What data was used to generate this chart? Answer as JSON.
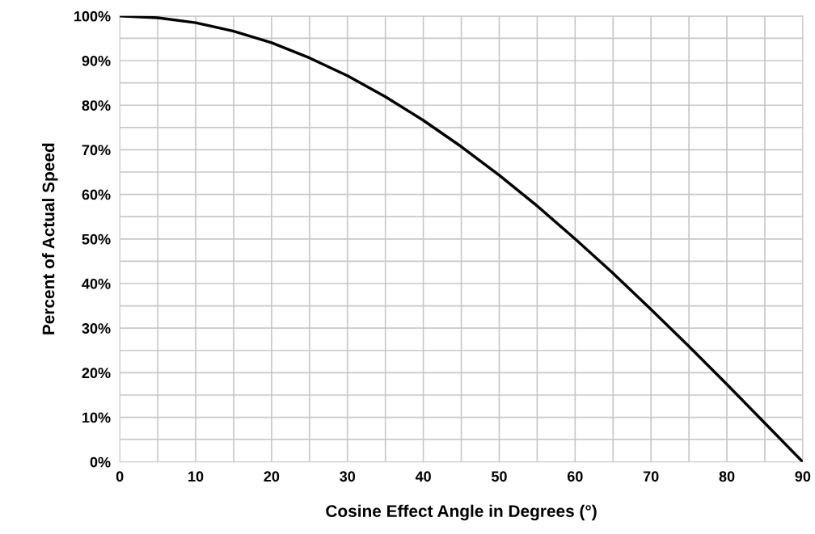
{
  "chart_data": {
    "type": "line",
    "xlabel": "Cosine Effect Angle in Degrees (°)",
    "ylabel": "Percent of Actual Speed",
    "x": [
      0,
      5,
      10,
      15,
      20,
      25,
      30,
      35,
      40,
      45,
      50,
      55,
      60,
      65,
      70,
      75,
      80,
      85,
      90
    ],
    "series": [
      {
        "color": "#000000",
        "values": [
          100,
          99.6,
          98.5,
          96.6,
          94,
          90.6,
          86.6,
          81.9,
          76.6,
          70.7,
          64.3,
          57.4,
          50,
          42.3,
          34.2,
          25.9,
          17.4,
          8.7,
          0
        ]
      }
    ],
    "xlim": [
      0,
      90
    ],
    "ylim": [
      0,
      100
    ],
    "xticks": [
      0,
      {
        "value": 5,
        "label": null
      },
      10,
      {
        "value": 15,
        "label": null
      },
      20,
      {
        "value": 25,
        "label": null
      },
      30,
      {
        "value": 35,
        "label": null
      },
      40,
      {
        "value": 45,
        "label": null
      },
      50,
      {
        "value": 55,
        "label": null
      },
      60,
      {
        "value": 65,
        "label": null
      },
      70,
      {
        "value": 75,
        "label": null
      },
      80,
      {
        "value": 85,
        "label": null
      },
      90
    ],
    "yticks": [
      {
        "value": 0,
        "label": "0%"
      },
      {
        "value": 5,
        "label": null
      },
      {
        "value": 10,
        "label": "10%"
      },
      {
        "value": 15,
        "label": null
      },
      {
        "value": 20,
        "label": "20%"
      },
      {
        "value": 25,
        "label": null
      },
      {
        "value": 30,
        "label": "30%"
      },
      {
        "value": 35,
        "label": null
      },
      {
        "value": 40,
        "label": "40%"
      },
      {
        "value": 45,
        "label": null
      },
      {
        "value": 50,
        "label": "50%"
      },
      {
        "value": 55,
        "label": null
      },
      {
        "value": 60,
        "label": "60%"
      },
      {
        "value": 65,
        "label": null
      },
      {
        "value": 70,
        "label": "70%"
      },
      {
        "value": 75,
        "label": null
      },
      {
        "value": 80,
        "label": "80%"
      },
      {
        "value": 85,
        "label": null
      },
      {
        "value": 90,
        "label": "90%"
      },
      {
        "value": 95,
        "label": null
      },
      {
        "value": 100,
        "label": "100%"
      }
    ],
    "grid": true,
    "marker": "none",
    "line_style": "solid"
  }
}
